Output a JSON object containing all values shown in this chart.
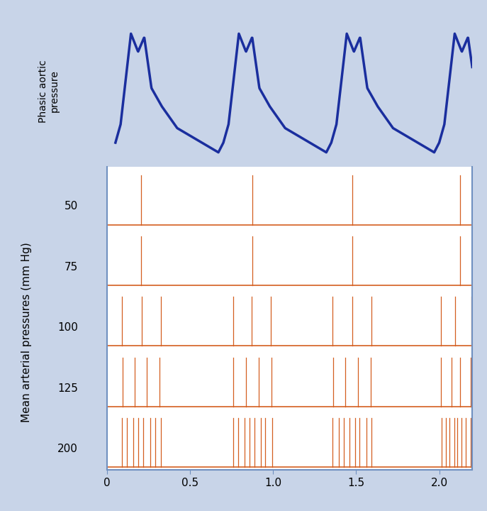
{
  "title": "",
  "xlabel": "",
  "ylabel_left": "Mean arterial pressures (mm Hg)",
  "ylabel_top": "Phasic aortic\npressure",
  "x_max": 2.2,
  "spike_color": "#d45f20",
  "aortic_color": "#1a2e9e",
  "background_color": "#c8d4e8",
  "plot_bg": "#ffffff",
  "border_color": "#7090c0",
  "pressure_labels": [
    50,
    75,
    100,
    125,
    200
  ],
  "spike_rates": [
    1,
    4,
    12,
    18,
    35
  ],
  "burst_starts": [
    0.08,
    0.75,
    1.35,
    2.0
  ],
  "burst_duration": 0.25,
  "total_duration": 2.2,
  "xticks": [
    0,
    0.5,
    1.0,
    1.5,
    2.0
  ],
  "xtick_labels": [
    "0",
    "0.5",
    "1.0",
    "1.5",
    "2.0"
  ]
}
